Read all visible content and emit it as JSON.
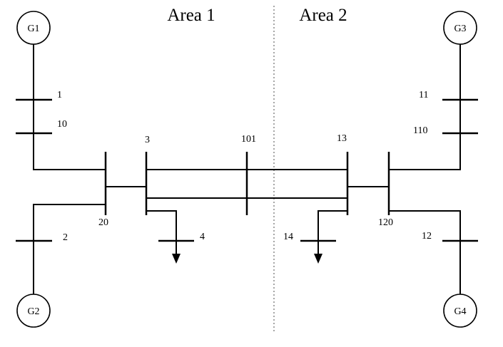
{
  "areas": {
    "area1": "Area 1",
    "area2": "Area 2"
  },
  "generators": {
    "g1": "G1",
    "g2": "G2",
    "g3": "G3",
    "g4": "G4"
  },
  "buses": {
    "b1": "1",
    "b10": "10",
    "b2": "2",
    "b20": "20",
    "b3": "3",
    "b4": "4",
    "b101": "101",
    "b13": "13",
    "b14": "14",
    "b120": "120",
    "b11": "11",
    "b110": "110",
    "b12": "12"
  }
}
